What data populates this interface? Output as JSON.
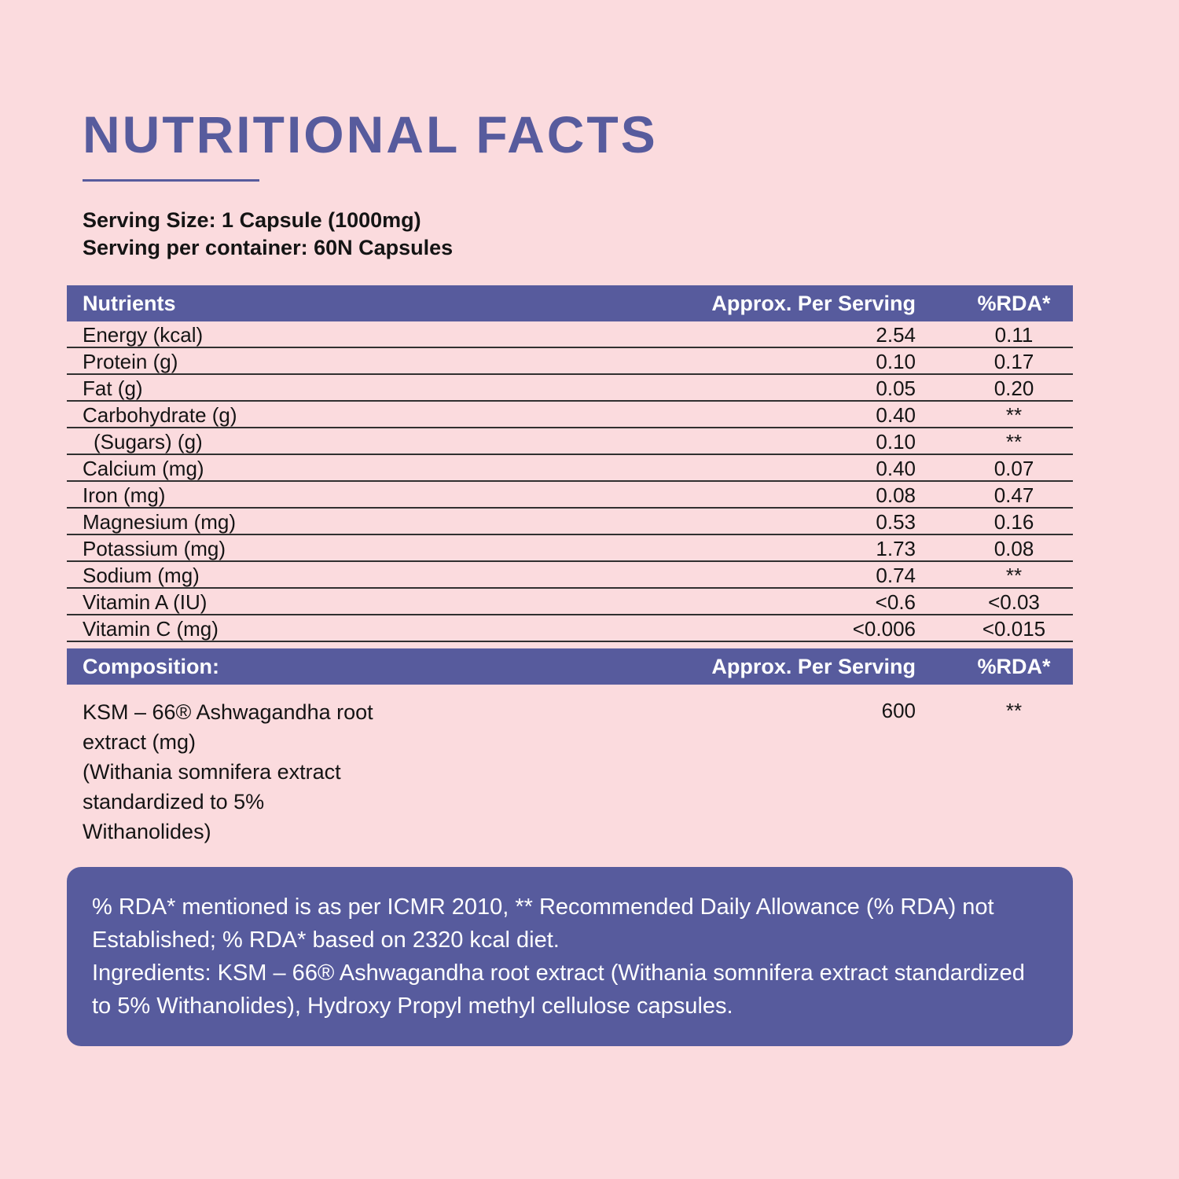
{
  "page": {
    "title": "NUTRITIONAL FACTS",
    "serving_size": "Serving Size: 1 Capsule (1000mg)",
    "serving_per_container": "Serving per container: 60N Capsules"
  },
  "nutrients_table": {
    "headers": [
      "Nutrients",
      "Approx. Per Serving",
      "%RDA*"
    ],
    "rows": [
      {
        "name": "Energy (kcal)",
        "per_serving": "2.54",
        "rda": "0.11"
      },
      {
        "name": "Protein (g)",
        "per_serving": "0.10",
        "rda": "0.17"
      },
      {
        "name": "Fat (g)",
        "per_serving": "0.05",
        "rda": "0.20"
      },
      {
        "name": "Carbohydrate (g)",
        "per_serving": "0.40",
        "rda": "**"
      },
      {
        "name": "(Sugars) (g)",
        "per_serving": "0.10",
        "rda": "**"
      },
      {
        "name": "Calcium  (mg)",
        "per_serving": "0.40",
        "rda": "0.07"
      },
      {
        "name": "Iron (mg)",
        "per_serving": "0.08",
        "rda": "0.47"
      },
      {
        "name": "Magnesium (mg)",
        "per_serving": "0.53",
        "rda": "0.16"
      },
      {
        "name": "Potassium (mg)",
        "per_serving": "1.73",
        "rda": "0.08"
      },
      {
        "name": "Sodium (mg)",
        "per_serving": "0.74",
        "rda": "**"
      },
      {
        "name": "Vitamin A (IU)",
        "per_serving": "<0.6",
        "rda": "<0.03"
      },
      {
        "name": "Vitamin C (mg)",
        "per_serving": "<0.006",
        "rda": "<0.015"
      }
    ]
  },
  "composition_table": {
    "headers": [
      "Composition:",
      "Approx. Per Serving",
      "%RDA*"
    ],
    "row": {
      "name": "KSM – 66® Ashwagandha root\nextract (mg)\n(Withania somnifera extract\nstandardized to 5%\nWithanolides)",
      "per_serving": "600",
      "rda": "**"
    }
  },
  "footnote": {
    "rda_note": "% RDA* mentioned is as per ICMR 2010, ** Recommended Daily Allowance (% RDA) not Established; % RDA* based on 2320 kcal diet.",
    "ingredients": "Ingredients: KSM – 66®  Ashwagandha root extract (Withania somnifera extract standardized to 5% Withanolides), Hydroxy Propyl methyl cellulose capsules."
  },
  "colors": {
    "background": "#FBDBDE",
    "accent": "#575B9D",
    "text": "#141414",
    "header_text": "#FFFFFF"
  }
}
